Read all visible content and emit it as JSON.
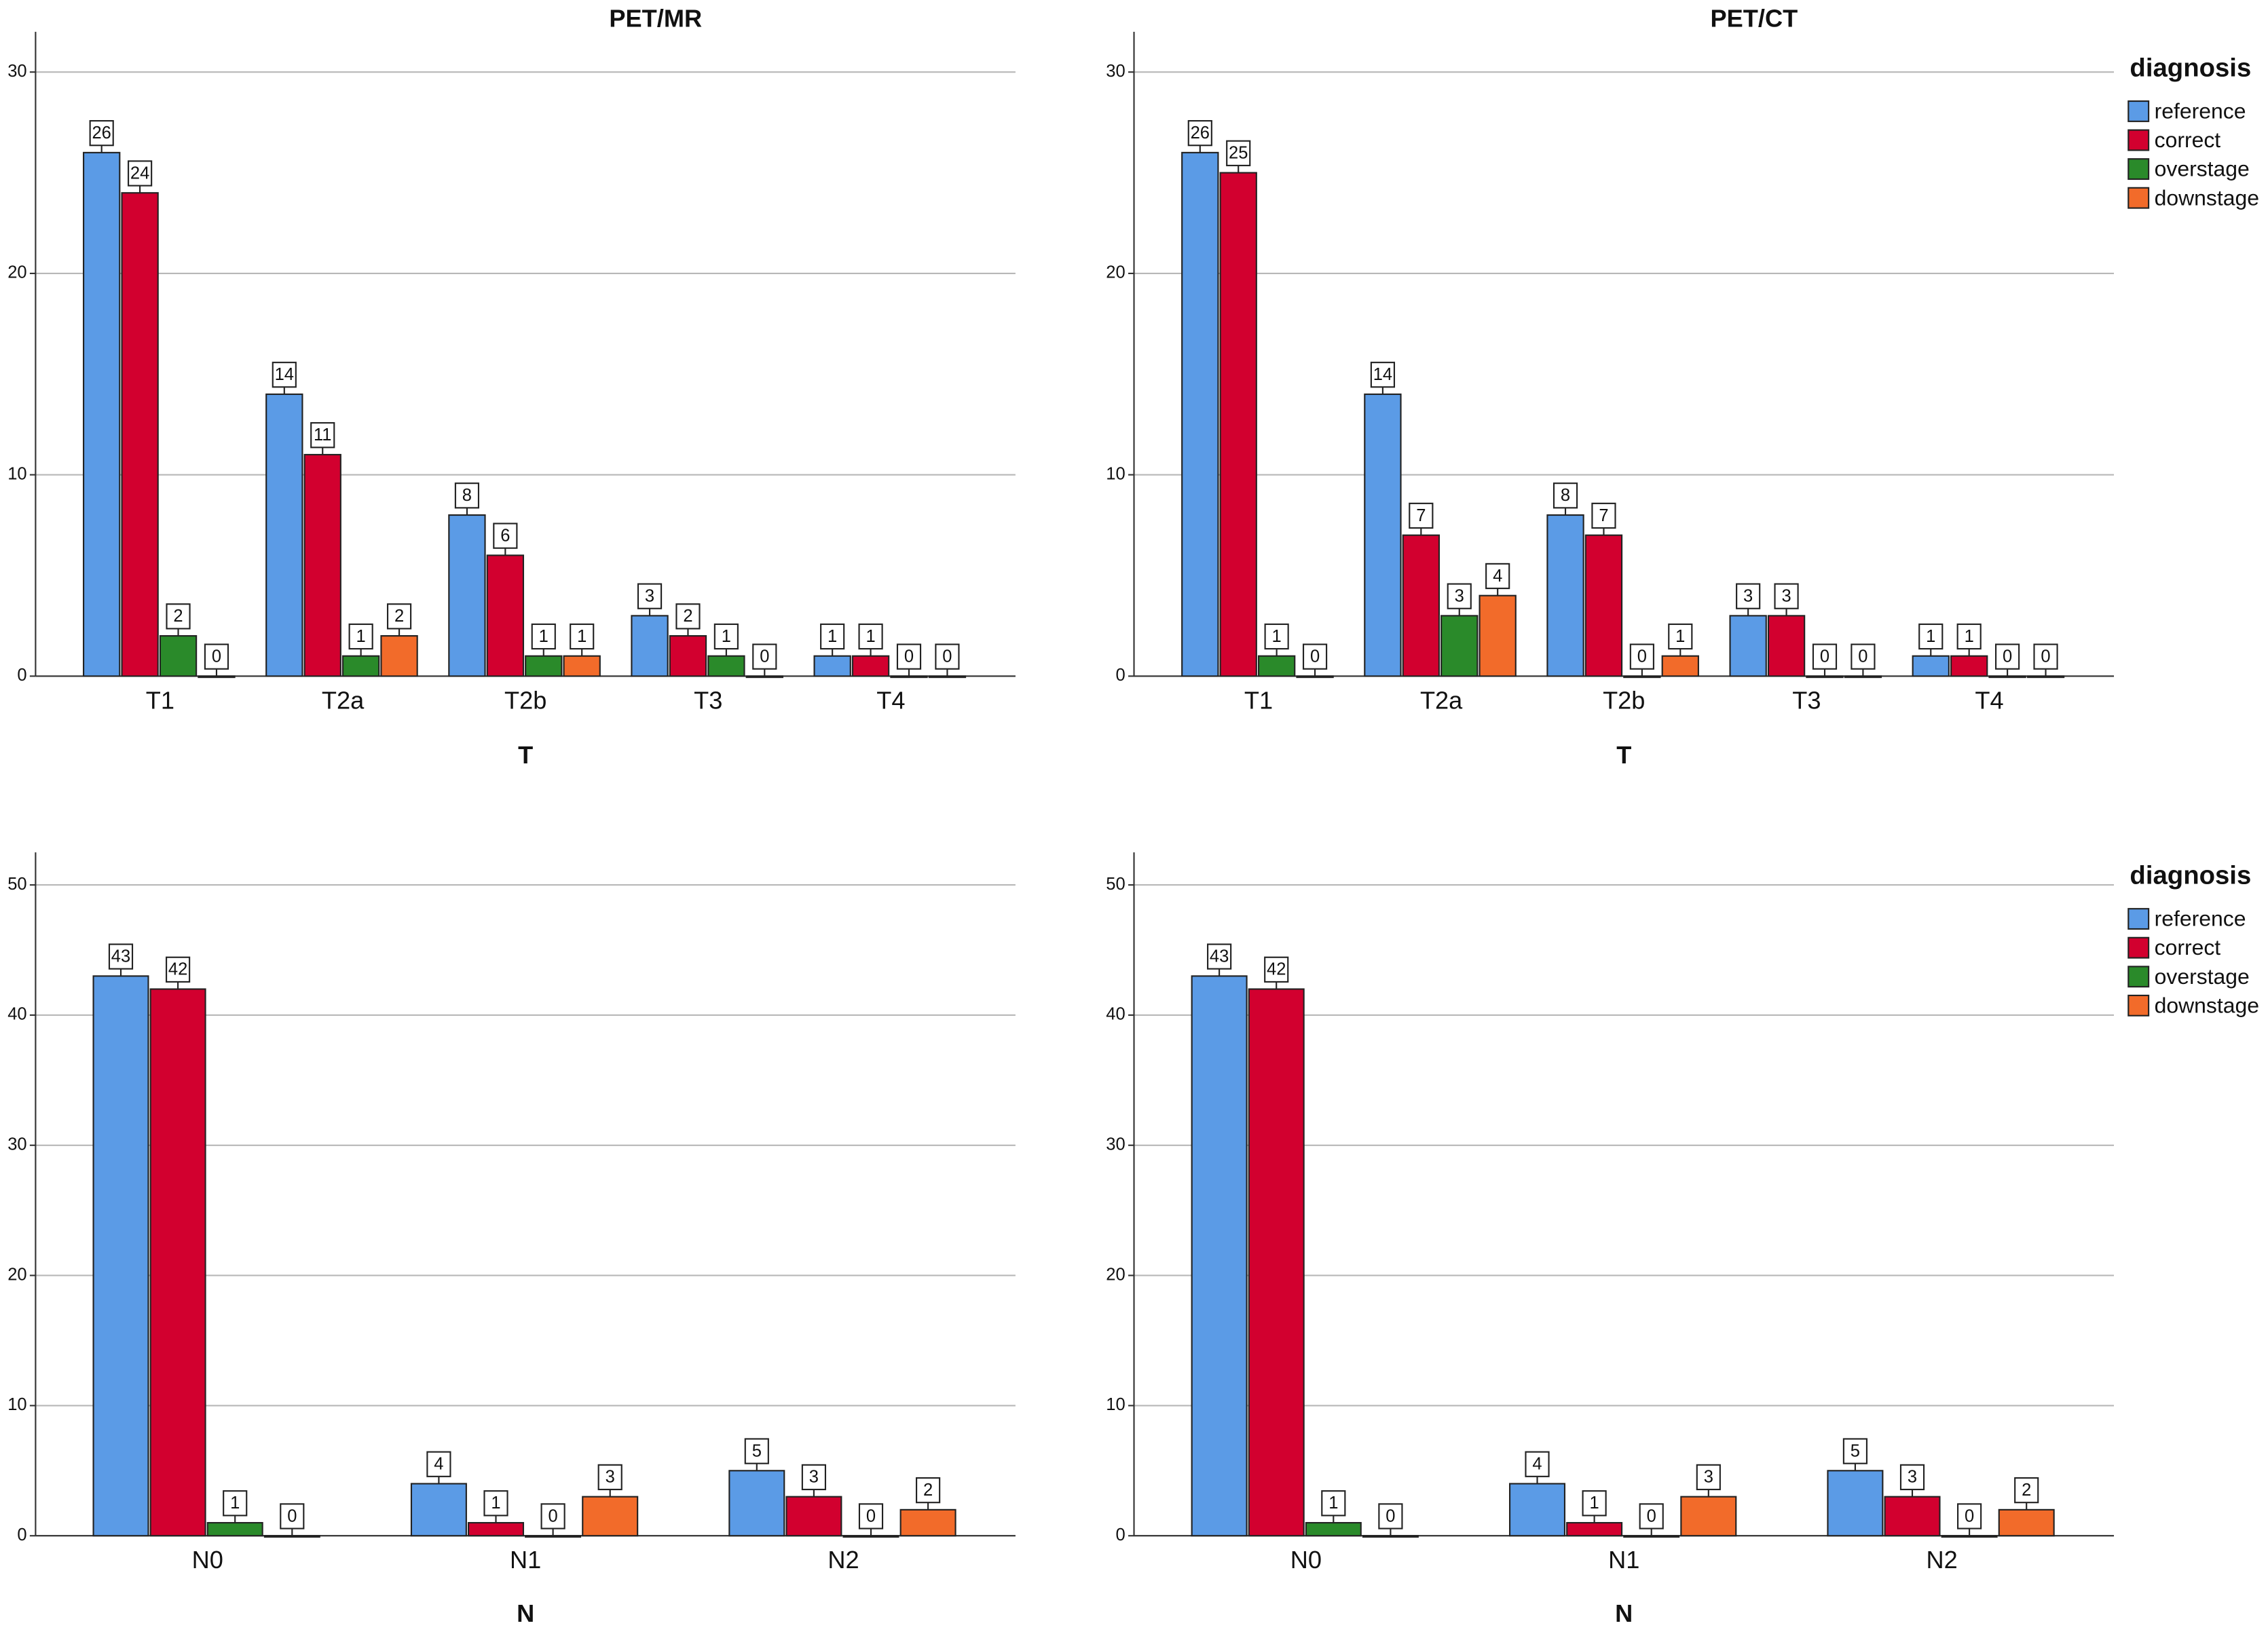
{
  "chart_data": [
    {
      "type": "bar",
      "title": "PET/MR",
      "x_label": "T",
      "categories": [
        "T1",
        "T2a",
        "T2b",
        "T3",
        "T4"
      ],
      "series": [
        {
          "color": "#5b9be6",
          "values": [
            26,
            14,
            8,
            3,
            1
          ]
        },
        {
          "color": "#d2002f",
          "values": [
            24,
            11,
            6,
            2,
            1
          ]
        },
        {
          "color": "#2a8a2a",
          "values": [
            2,
            1,
            1,
            1,
            0
          ]
        },
        {
          "color": "#f26b2a",
          "values": [
            0,
            2,
            1,
            0,
            0
          ]
        }
      ],
      "ylim": [
        0,
        32
      ],
      "yticks": [
        0,
        10,
        20,
        30
      ],
      "grid": true,
      "legend": false
    },
    {
      "type": "bar",
      "title": "PET/CT",
      "x_label": "T",
      "categories": [
        "T1",
        "T2a",
        "T2b",
        "T3",
        "T4"
      ],
      "series": [
        {
          "name": "reference",
          "color": "#5b9be6",
          "values": [
            26,
            14,
            8,
            3,
            1
          ]
        },
        {
          "name": "correct",
          "color": "#d2002f",
          "values": [
            25,
            7,
            7,
            3,
            1
          ]
        },
        {
          "name": "overstage",
          "color": "#2a8a2a",
          "values": [
            1,
            3,
            0,
            0,
            0
          ]
        },
        {
          "name": "downstage",
          "color": "#f26b2a",
          "values": [
            0,
            4,
            1,
            0,
            0
          ]
        }
      ],
      "ylim": [
        0,
        32
      ],
      "yticks": [
        0,
        10,
        20,
        30
      ],
      "grid": true,
      "legend": true,
      "legend_title": "diagnosis"
    },
    {
      "type": "bar",
      "x_label": "N",
      "categories": [
        "N0",
        "N1",
        "N2"
      ],
      "series": [
        {
          "color": "#5b9be6",
          "values": [
            43,
            4,
            5
          ]
        },
        {
          "color": "#d2002f",
          "values": [
            42,
            1,
            3
          ]
        },
        {
          "color": "#2a8a2a",
          "values": [
            1,
            0,
            0
          ]
        },
        {
          "color": "#f26b2a",
          "values": [
            0,
            3,
            2
          ]
        }
      ],
      "ylim": [
        0,
        52.5
      ],
      "yticks": [
        0,
        10,
        20,
        30,
        40,
        50
      ],
      "grid": true,
      "legend": false
    },
    {
      "type": "bar",
      "x_label": "N",
      "categories": [
        "N0",
        "N1",
        "N2"
      ],
      "series": [
        {
          "name": "reference",
          "color": "#5b9be6",
          "values": [
            43,
            4,
            5
          ]
        },
        {
          "name": "correct",
          "color": "#d2002f",
          "values": [
            42,
            1,
            3
          ]
        },
        {
          "name": "overstage",
          "color": "#2a8a2a",
          "values": [
            1,
            0,
            0
          ]
        },
        {
          "name": "downstage",
          "color": "#f26b2a",
          "values": [
            0,
            3,
            2
          ]
        }
      ],
      "ylim": [
        0,
        52.5
      ],
      "yticks": [
        0,
        10,
        20,
        30,
        40,
        50
      ],
      "grid": true,
      "legend": true,
      "legend_title": "diagnosis"
    }
  ]
}
